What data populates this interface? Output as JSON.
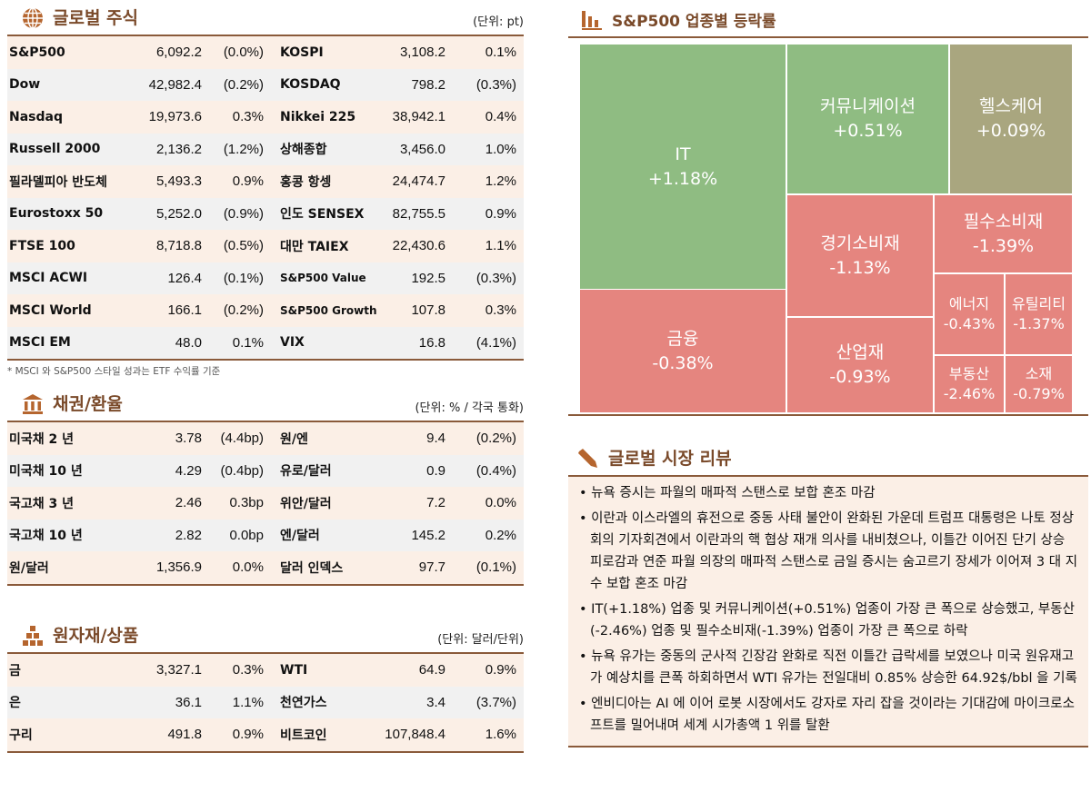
{
  "equity": {
    "title": "글로벌 주식",
    "unit": "(단위: pt)",
    "note": "* MSCI 와 S&P500 스타일 성과는 ETF 수익률 기준",
    "rows": [
      [
        "S&P500",
        "6,092.2",
        "(0.0%)",
        "KOSPI",
        "3,108.2",
        "0.1%"
      ],
      [
        "Dow",
        "42,982.4",
        "(0.2%)",
        "KOSDAQ",
        "798.2",
        "(0.3%)"
      ],
      [
        "Nasdaq",
        "19,973.6",
        "0.3%",
        "Nikkei 225",
        "38,942.1",
        "0.4%"
      ],
      [
        "Russell 2000",
        "2,136.2",
        "(1.2%)",
        "상해종합",
        "3,456.0",
        "1.0%"
      ],
      [
        "필라델피아 반도체",
        "5,493.3",
        "0.9%",
        "홍콩 항셍",
        "24,474.7",
        "1.2%"
      ],
      [
        "Eurostoxx 50",
        "5,252.0",
        "(0.9%)",
        "인도 SENSEX",
        "82,755.5",
        "0.9%"
      ],
      [
        "FTSE 100",
        "8,718.8",
        "(0.5%)",
        "대만 TAIEX",
        "22,430.6",
        "1.1%"
      ],
      [
        "MSCI ACWI",
        "126.4",
        "(0.1%)",
        "S&P500 Value",
        "192.5",
        "(0.3%)"
      ],
      [
        "MSCI World",
        "166.1",
        "(0.2%)",
        "S&P500 Growth",
        "107.8",
        "0.3%"
      ],
      [
        "MSCI EM",
        "48.0",
        "0.1%",
        "VIX",
        "16.8",
        "(4.1%)"
      ]
    ]
  },
  "bonds": {
    "title": "채권/환율",
    "unit": "(단위: % / 각국 통화)",
    "rows": [
      [
        "미국채 2 년",
        "3.78",
        "(4.4bp)",
        "원/엔",
        "9.4",
        "(0.2%)"
      ],
      [
        "미국채 10 년",
        "4.29",
        "(0.4bp)",
        "유로/달러",
        "0.9",
        "(0.4%)"
      ],
      [
        "국고채 3 년",
        "2.46",
        "0.3bp",
        "위안/달러",
        "7.2",
        "0.0%"
      ],
      [
        "국고채 10 년",
        "2.82",
        "0.0bp",
        "엔/달러",
        "145.2",
        "0.2%"
      ],
      [
        "원/달러",
        "1,356.9",
        "0.0%",
        "달러 인덱스",
        "97.7",
        "(0.1%)"
      ]
    ]
  },
  "commod": {
    "title": "원자재/상품",
    "unit": "(단위: 달러/단위)",
    "rows": [
      [
        "금",
        "3,327.1",
        "0.3%",
        "WTI",
        "64.9",
        "0.9%"
      ],
      [
        "은",
        "36.1",
        "1.1%",
        "천연가스",
        "3.4",
        "(3.7%)"
      ],
      [
        "구리",
        "491.8",
        "0.9%",
        "비트코인",
        "107,848.4",
        "1.6%"
      ]
    ]
  },
  "treemap": {
    "title": "S&P500 업종별 등락률",
    "colors": {
      "up": "#8fbc82",
      "flat": "#a9a67f",
      "down": "#e5857f"
    },
    "tiles": [
      {
        "name": "IT",
        "value": "+1.18%"
      },
      {
        "name": "금융",
        "value": "-0.38%"
      },
      {
        "name": "커뮤니케이션",
        "value": "+0.51%"
      },
      {
        "name": "헬스케어",
        "value": "+0.09%"
      },
      {
        "name": "경기소비재",
        "value": "-1.13%"
      },
      {
        "name": "산업재",
        "value": "-0.93%"
      },
      {
        "name": "필수소비재",
        "value": "-1.39%"
      },
      {
        "name": "에너지",
        "value": "-0.43%"
      },
      {
        "name": "유틸리티",
        "value": "-1.37%"
      },
      {
        "name": "부동산",
        "value": "-2.46%"
      },
      {
        "name": "소재",
        "value": "-0.79%"
      }
    ]
  },
  "review": {
    "title": "글로벌 시장 리뷰",
    "items": [
      "• 뉴욕 증시는 파월의 매파적 스탠스로 보합 혼조 마감",
      "• 이란과 이스라엘의 휴전으로 중동 사태 불안이 완화된 가운데 트럼프 대통령은 나토 정상회의 기자회견에서 이란과의 핵 협상 재개 의사를 내비쳤으나, 이틀간 이어진 단기 상승 피로감과 연준 파월 의장의 매파적 스탠스로 금일 증시는 숨고르기 장세가 이어져 3 대 지수 보합 혼조 마감",
      "• IT(+1.18%) 업종 및 커뮤니케이션(+0.51%) 업종이 가장 큰 폭으로 상승했고, 부동산(-2.46%) 업종 및 필수소비재(-1.39%) 업종이 가장 큰 폭으로 하락",
      "• 뉴욕 유가는 중동의 군사적 긴장감 완화로 직전 이틀간 급락세를 보였으나 미국 원유재고가 예상치를 큰폭 하회하면서 WTI 유가는 전일대비 0.85% 상승한 64.92$/bbl 을 기록",
      "• 엔비디아는 AI 에 이어 로봇 시장에서도 강자로 자리 잡을 것이라는 기대감에 마이크로소프트를 밀어내며 세계 시가총액 1 위를 탈환"
    ]
  }
}
